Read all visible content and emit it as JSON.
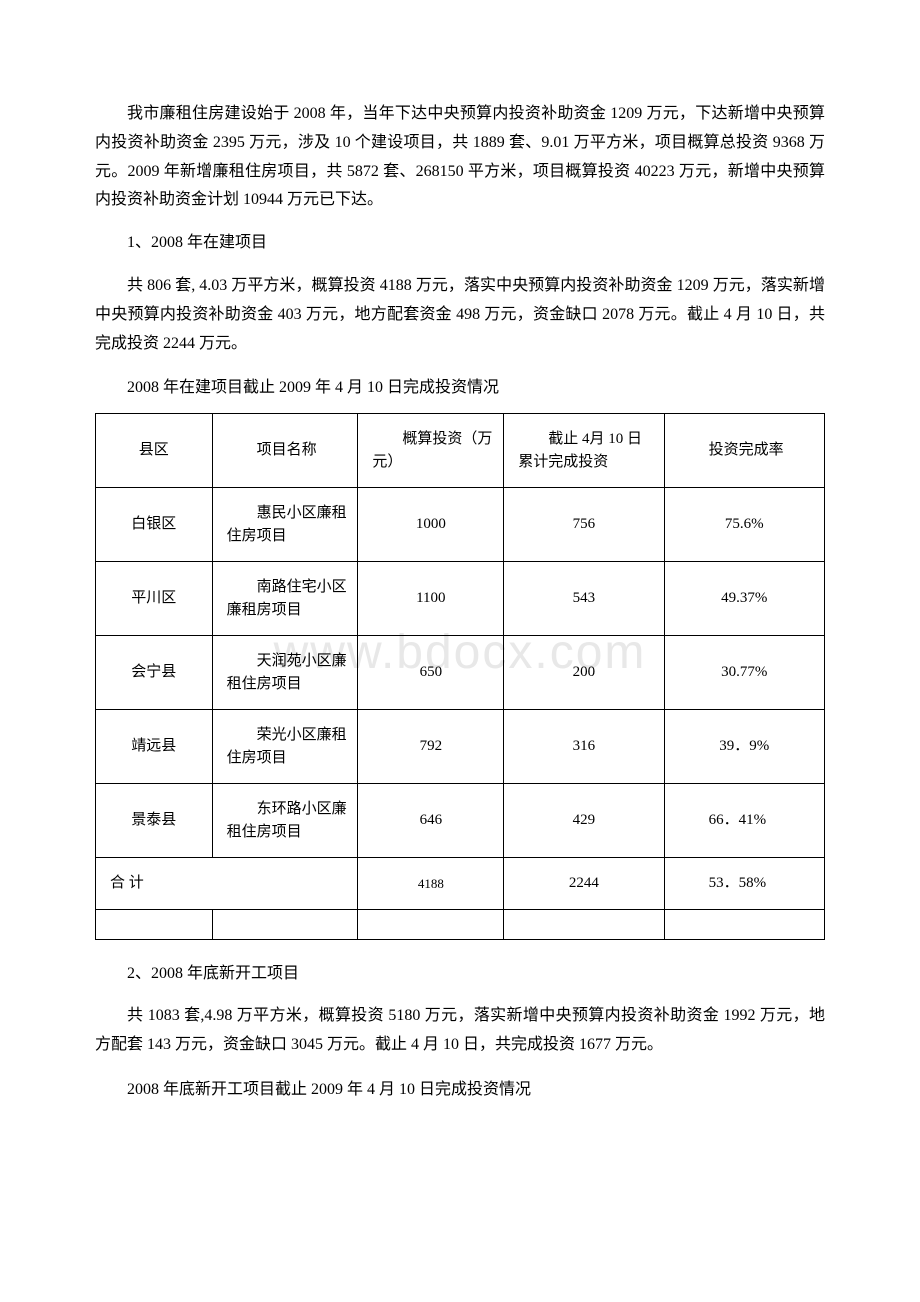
{
  "watermark": "www.bdocx.com",
  "paragraphs": {
    "p1": "我市廉租住房建设始于 2008 年，当年下达中央预算内投资补助资金 1209 万元，下达新增中央预算内投资补助资金 2395 万元，涉及 10 个建设项目，共 1889 套、9.01 万平方米，项目概算总投资 9368 万元。2009 年新增廉租住房项目，共 5872 套、268150 平方米，项目概算投资 40223 万元，新增中央预算内投资补助资金计划 10944 万元已下达。",
    "p2": "1、2008 年在建项目",
    "p3": "共 806 套, 4.03 万平方米，概算投资 4188 万元，落实中央预算内投资补助资金 1209 万元，落实新增中央预算内投资补助资金 403 万元，地方配套资金 498 万元，资金缺口 2078 万元。截止 4 月 10 日，共完成投资 2244 万元。",
    "caption1": "2008 年在建项目截止 2009 年 4 月 10 日完成投资情况",
    "p4": "2、2008 年底新开工项目",
    "p5": "共 1083 套,4.98 万平方米，概算投资 5180 万元，落实新增中央预算内投资补助资金 1992 万元，地方配套 143 万元，资金缺口 3045 万元。截止 4 月 10 日，共完成投资 1677 万元。",
    "caption2": "2008 年底新开工项目截止 2009 年 4 月 10 日完成投资情况"
  },
  "table1": {
    "type": "table",
    "headers": {
      "h1": "县区",
      "h2": "　　项目名称",
      "h3": "　　概算投资（万元）",
      "h4": "　　截止 4月 10 日累计完成投资",
      "h5": "　　投资完成率"
    },
    "rows": [
      {
        "county": "白银区",
        "project": "　　惠民小区廉租住房项目",
        "budget": "1000",
        "completed": "756",
        "rate": "75.6%"
      },
      {
        "county": "平川区",
        "project": "　　南路住宅小区廉租房项目",
        "budget": "1100",
        "completed": "543",
        "rate": "49.37%"
      },
      {
        "county": "会宁县",
        "project": "　　天润苑小区廉租住房项目",
        "budget": "650",
        "completed": "200",
        "rate": "30.77%"
      },
      {
        "county": "靖远县",
        "project": "　　荣光小区廉租住房项目",
        "budget": "792",
        "completed": "316",
        "rate": "39．9%"
      },
      {
        "county": "景泰县",
        "project": "　　东环路小区廉租住房项目",
        "budget": "646",
        "completed": "429",
        "rate": "　　66．41%"
      }
    ],
    "total": {
      "label": "合 计",
      "budget": "4188",
      "completed": "2244",
      "rate": "　　53．58%"
    }
  }
}
